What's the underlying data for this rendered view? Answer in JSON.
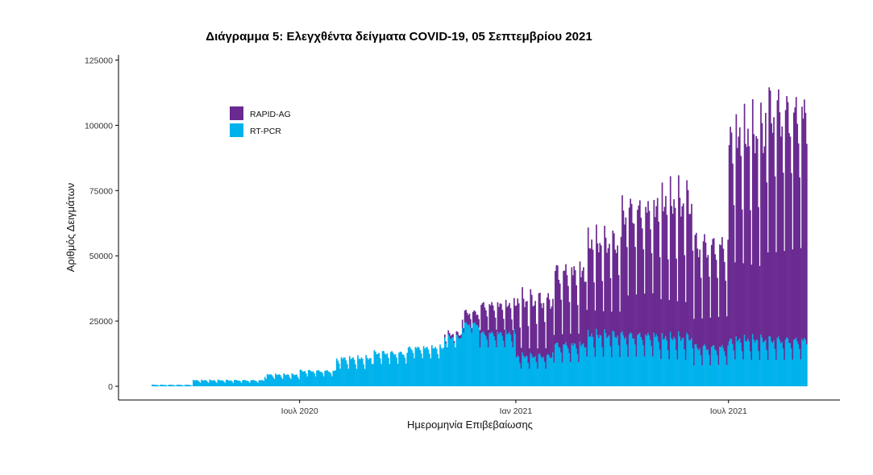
{
  "chart_data": {
    "type": "bar",
    "stacked": true,
    "title": "Διάγραμμα 5: Ελεγχθέντα δείγματα COVID-19, 05 Σεπτεμβρίου 2021",
    "xlabel": "Ημερομηνία Επιβεβαίωσης",
    "ylabel": "Αριθμός Δειγμάτων",
    "ylim": [
      0,
      127000
    ],
    "xlim": [
      "2020-02-26",
      "2021-09-05"
    ],
    "y_ticks": [
      0,
      25000,
      50000,
      75000,
      100000,
      125000
    ],
    "x_ticks": [
      {
        "date": "2020-07-01",
        "label": "Ιουλ 2020"
      },
      {
        "date": "2021-01-01",
        "label": "Ιαν 2021"
      },
      {
        "date": "2021-07-01",
        "label": "Ιουλ 2021"
      }
    ],
    "grid": false,
    "legend_position": "top-left",
    "series": [
      {
        "name": "RAPID-AG",
        "color": "#6a2a91"
      },
      {
        "name": "RT-PCR",
        "color": "#00b2ec"
      }
    ],
    "segments": [
      {
        "start": "2020-02-26",
        "end": "2020-03-31",
        "pcr_base": 100,
        "pcr_peak": 700,
        "ag_base": 0,
        "ag_peak": 0
      },
      {
        "start": "2020-04-01",
        "end": "2020-05-31",
        "pcr_base": 1200,
        "pcr_peak": 2600,
        "ag_base": 0,
        "ag_peak": 0
      },
      {
        "start": "2020-06-01",
        "end": "2020-06-30",
        "pcr_base": 2500,
        "pcr_peak": 5000,
        "ag_base": 0,
        "ag_peak": 0
      },
      {
        "start": "2020-07-01",
        "end": "2020-07-31",
        "pcr_base": 3500,
        "pcr_peak": 6500,
        "ag_base": 0,
        "ag_peak": 0
      },
      {
        "start": "2020-08-01",
        "end": "2020-08-31",
        "pcr_base": 6000,
        "pcr_peak": 12000,
        "ag_base": 0,
        "ag_peak": 0
      },
      {
        "start": "2020-09-01",
        "end": "2020-09-30",
        "pcr_base": 8000,
        "pcr_peak": 14000,
        "ag_base": 0,
        "ag_peak": 0
      },
      {
        "start": "2020-10-01",
        "end": "2020-10-31",
        "pcr_base": 10000,
        "pcr_peak": 16000,
        "ag_base": 0,
        "ag_peak": 0
      },
      {
        "start": "2020-11-01",
        "end": "2020-11-15",
        "pcr_base": 14000,
        "pcr_peak": 20000,
        "ag_base": 100,
        "ag_peak": 1500
      },
      {
        "start": "2020-11-16",
        "end": "2020-11-30",
        "pcr_base": 20000,
        "pcr_peak": 25000,
        "ag_base": 1500,
        "ag_peak": 5000
      },
      {
        "start": "2020-12-01",
        "end": "2020-12-31",
        "pcr_base": 14000,
        "pcr_peak": 22000,
        "ag_base": 6000,
        "ag_peak": 12000
      },
      {
        "start": "2021-01-01",
        "end": "2021-01-31",
        "pcr_base": 6000,
        "pcr_peak": 13000,
        "ag_base": 6000,
        "ag_peak": 25000
      },
      {
        "start": "2021-02-01",
        "end": "2021-02-28",
        "pcr_base": 8000,
        "pcr_peak": 18000,
        "ag_base": 8000,
        "ag_peak": 33000
      },
      {
        "start": "2021-03-01",
        "end": "2021-03-31",
        "pcr_base": 10000,
        "pcr_peak": 22000,
        "ag_base": 15000,
        "ag_peak": 40000
      },
      {
        "start": "2021-04-01",
        "end": "2021-04-30",
        "pcr_base": 10000,
        "pcr_peak": 22000,
        "ag_base": 20000,
        "ag_peak": 55000
      },
      {
        "start": "2021-05-01",
        "end": "2021-05-31",
        "pcr_base": 9000,
        "pcr_peak": 21000,
        "ag_base": 18000,
        "ag_peak": 60000
      },
      {
        "start": "2021-06-01",
        "end": "2021-06-30",
        "pcr_base": 7000,
        "pcr_peak": 17000,
        "ag_base": 15000,
        "ag_peak": 45000
      },
      {
        "start": "2021-07-01",
        "end": "2021-07-31",
        "pcr_base": 9000,
        "pcr_peak": 20000,
        "ag_base": 30000,
        "ag_peak": 90000
      },
      {
        "start": "2021-08-01",
        "end": "2021-09-05",
        "pcr_base": 9000,
        "pcr_peak": 20000,
        "ag_base": 35000,
        "ag_peak": 100000
      }
    ]
  }
}
